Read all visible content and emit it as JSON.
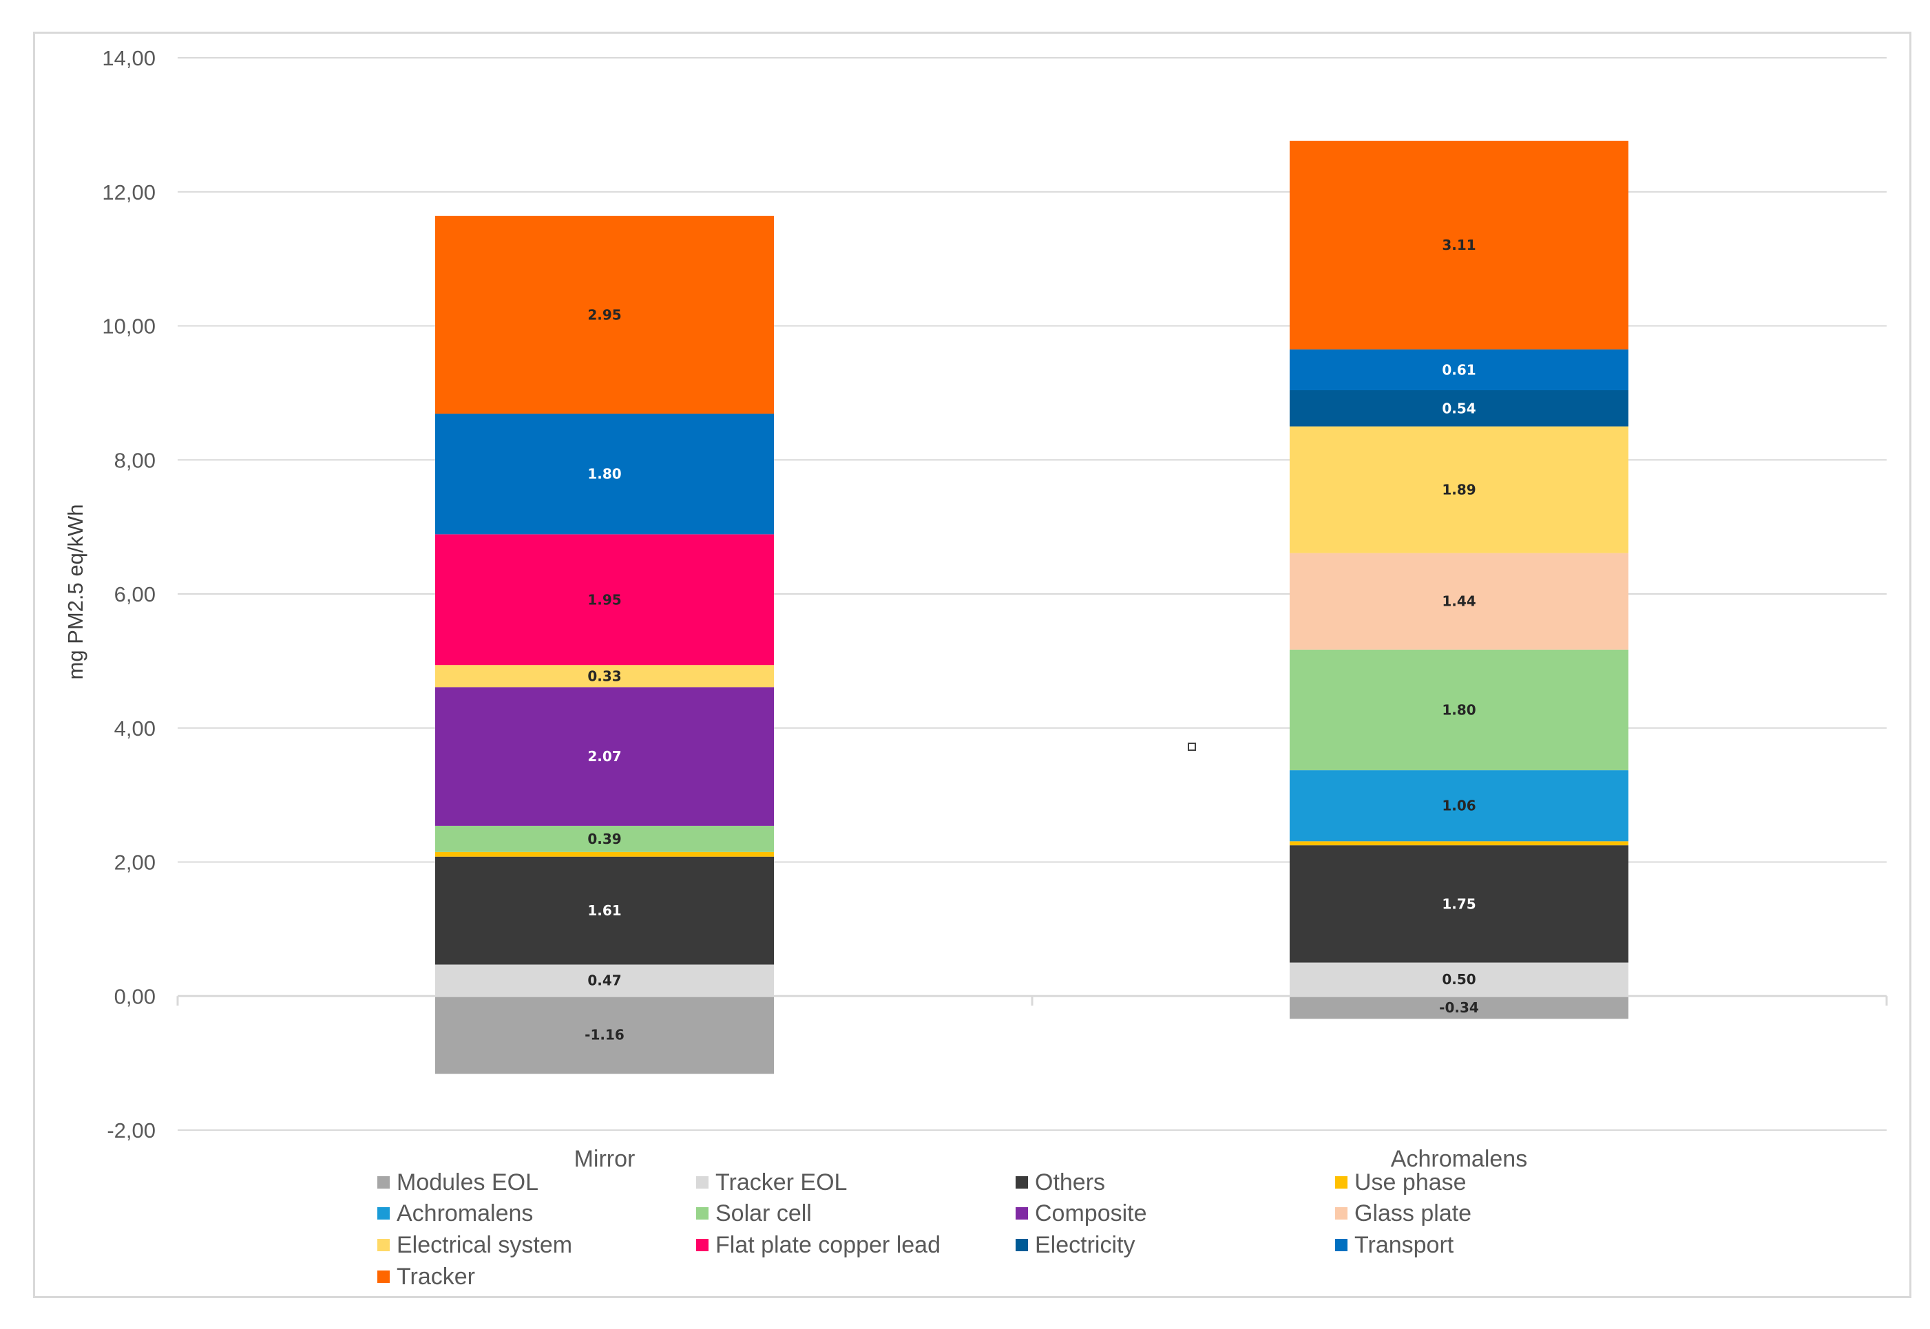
{
  "chart_data": {
    "type": "stacked-bar",
    "title": "",
    "ylabel": "mg PM2.5 eq/kWh",
    "xlabel": "",
    "ylim": [
      -2,
      14
    ],
    "yticks": [
      14,
      12,
      10,
      8,
      6,
      4,
      2,
      0,
      -2
    ],
    "ytick_labels": [
      "14,00",
      "12,00",
      "10,00",
      "8,00",
      "6,00",
      "4,00",
      "2,00",
      "0,00",
      "-2,00"
    ],
    "grid": true,
    "legend_position": "bottom",
    "categories": [
      "Mirror",
      "Achromalens"
    ],
    "series": [
      {
        "name": "Modules EOL",
        "color": "#a6a6a6",
        "values": [
          -1.16,
          -0.34
        ],
        "labels": [
          "-1.16",
          "-0.34"
        ],
        "label_color": "#262626"
      },
      {
        "name": "Tracker EOL",
        "color": "#d9d9d9",
        "values": [
          0.47,
          0.5
        ],
        "labels": [
          "0.47",
          "0.50"
        ],
        "label_color": "#262626"
      },
      {
        "name": "Others",
        "color": "#3a3a3a",
        "values": [
          1.61,
          1.75
        ],
        "labels": [
          "1.61",
          "1.75"
        ],
        "label_color": "#ffffff"
      },
      {
        "name": "Use phase",
        "color": "#ffc000",
        "values": [
          0.07,
          0.06
        ],
        "labels": [
          "",
          ""
        ],
        "label_color": "#262626"
      },
      {
        "name": "Achromalens",
        "color": "#1a9bd7",
        "values": [
          0,
          1.06
        ],
        "labels": [
          "",
          "1.06"
        ],
        "label_color": "#262626"
      },
      {
        "name": "Solar cell",
        "color": "#97d48a",
        "values": [
          0.39,
          1.8
        ],
        "labels": [
          "0.39",
          "1.80"
        ],
        "label_color": "#262626"
      },
      {
        "name": "Composite",
        "color": "#7f2aa3",
        "values": [
          2.07,
          0
        ],
        "labels": [
          "2.07",
          ""
        ],
        "label_color": "#ffffff"
      },
      {
        "name": "Glass plate",
        "color": "#fbcaa9",
        "values": [
          0,
          1.44
        ],
        "labels": [
          "",
          "1.44"
        ],
        "label_color": "#262626"
      },
      {
        "name": "Electrical system",
        "color": "#ffd966",
        "values": [
          0.33,
          1.89
        ],
        "labels": [
          "0.33",
          "1.89"
        ],
        "label_color": "#262626"
      },
      {
        "name": "Flat plate copper lead",
        "color": "#ff0066",
        "values": [
          1.95,
          0
        ],
        "labels": [
          "1.95",
          ""
        ],
        "label_color": "#262626"
      },
      {
        "name": "Electricity",
        "color": "#005b96",
        "values": [
          0,
          0.54
        ],
        "labels": [
          "",
          "0.54"
        ],
        "label_color": "#ffffff"
      },
      {
        "name": "Transport",
        "color": "#0070c0",
        "values": [
          1.8,
          0.61
        ],
        "labels": [
          "1.80",
          "0.61"
        ],
        "label_color": "#ffffff"
      },
      {
        "name": "Tracker",
        "color": "#ff6600",
        "values": [
          2.95,
          3.11
        ],
        "labels": [
          "2.95",
          "3.11"
        ],
        "label_color": "#262626"
      }
    ]
  }
}
